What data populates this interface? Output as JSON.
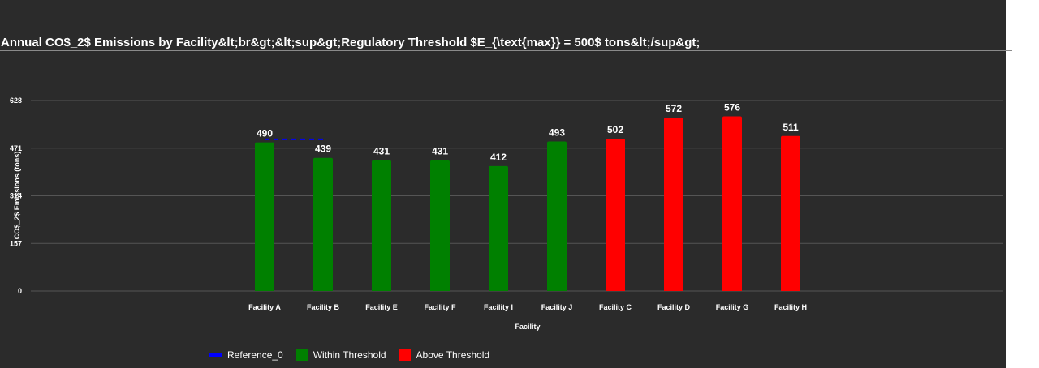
{
  "chart_data": {
    "type": "bar",
    "title": "Annual CO$_2$ Emissions by Facility&lt;br&gt;&lt;sup&gt;Regulatory Threshold $E_{\\text{max}} = 500$ tons&lt;/sup&gt;",
    "xlabel": "Facility",
    "ylabel": "CO$_2$ Emissions (tons)",
    "ylim": [
      0,
      628
    ],
    "yticks": [
      0,
      157,
      314,
      471,
      628
    ],
    "grid": true,
    "categories": [
      "Facility A",
      "Facility B",
      "Facility E",
      "Facility F",
      "Facility I",
      "Facility J",
      "Facility C",
      "Facility D",
      "Facility G",
      "Facility H"
    ],
    "values": [
      490,
      439,
      431,
      431,
      412,
      493,
      502,
      572,
      576,
      511
    ],
    "groups": [
      "within",
      "within",
      "within",
      "within",
      "within",
      "within",
      "above",
      "above",
      "above",
      "above"
    ],
    "reference_line": {
      "name": "Reference_0",
      "value": 500,
      "x_from": "Facility A",
      "x_to": "Facility B"
    },
    "legend": {
      "placement": "bottom-left",
      "entries": [
        {
          "key": "reference",
          "label": "Reference_0",
          "color": "#0000ff"
        },
        {
          "key": "within",
          "label": "Within Threshold",
          "color": "#008000"
        },
        {
          "key": "above",
          "label": "Above Threshold",
          "color": "#ff0000"
        }
      ]
    }
  },
  "colors": {
    "background": "#2b2b2b",
    "grid": "#555555",
    "text": "#ffffff"
  }
}
